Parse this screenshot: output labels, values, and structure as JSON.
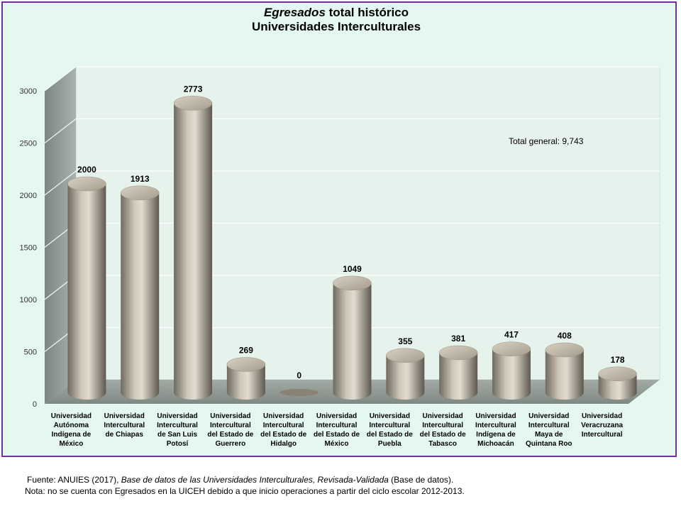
{
  "title": {
    "italic": "Egresados",
    "rest": " total histórico",
    "line2": "Universidades Interculturales"
  },
  "chart_data": {
    "type": "bar",
    "categories": [
      [
        "Universidad",
        "Autónoma",
        "Indígena de",
        "México"
      ],
      [
        "Universidad",
        "Intercultural",
        "de Chiapas"
      ],
      [
        "Universidad",
        "Intercultural",
        "de San Luis",
        "Potosí"
      ],
      [
        "Universidad",
        "Intercultural",
        "del Estado de",
        "Guerrero"
      ],
      [
        "Universidad",
        "Intercultural",
        "del Estado de",
        "Hidalgo"
      ],
      [
        "Universidad",
        "Intercultural",
        "del Estado de",
        "México"
      ],
      [
        "Universidad",
        "Intercultural",
        "del Estado de",
        "Puebla"
      ],
      [
        "Universidad",
        "Intercultural",
        "del Estado de",
        "Tabasco"
      ],
      [
        "Universidad",
        "Intercultural",
        "Indígena de",
        "Michoacán"
      ],
      [
        "Universidad",
        "Intercultural",
        "Maya de",
        "Quintana Roo"
      ],
      [
        "Universidad",
        "Veracruzana",
        "Intercultural"
      ]
    ],
    "values": [
      2000,
      1913,
      2773,
      269,
      0,
      1049,
      355,
      381,
      417,
      408,
      178
    ],
    "data_labels": [
      "2000",
      "1913",
      "2773",
      "269",
      "0",
      "1049",
      "355",
      "381",
      "417",
      "408",
      "178"
    ],
    "yticks": [
      "0",
      "500",
      "1000",
      "1500",
      "2000",
      "2500",
      "3000"
    ],
    "ylim": [
      0,
      3000
    ],
    "annotation": "Total general: 9,743",
    "grid": true,
    "style": "3d-cylinder",
    "colors": {
      "bar": "#b3aa9a",
      "wall": "#e6f2ec",
      "side_wall": "#8a948e",
      "floor": "#8f9892",
      "gridline": "#ffffff"
    }
  },
  "footer": {
    "source_prefix": "Fuente: ANUIES (2017),  ",
    "source_italic": "Base de datos de las Universidades  Interculturales, Revisada-Validada",
    "source_suffix": "  (Base de datos).",
    "note": "Nota: no se cuenta con Egresados en la UICEH debido a que inicio operaciones  a partir del ciclo escolar 2012-2013."
  }
}
